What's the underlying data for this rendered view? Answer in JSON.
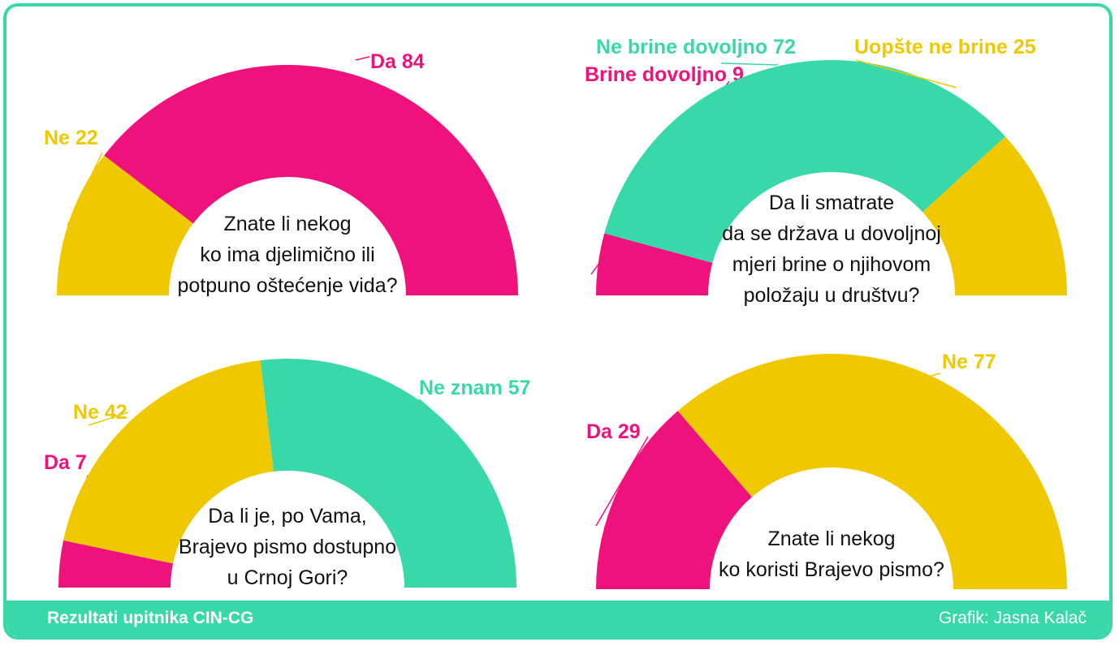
{
  "colors": {
    "pink": "#ef127c",
    "yellow": "#f0c800",
    "green": "#38d8a8",
    "frame": "#38d8a8"
  },
  "footer": {
    "left": "Rezultati upitnika CIN-CG",
    "right": "Grafik: Jasna Kalač"
  },
  "chart_data": [
    {
      "type": "pie",
      "question": [
        "Znate li nekog",
        "ko ima djelimično ili",
        "potpuno oštećenje vida?"
      ],
      "slices": [
        {
          "name": "Ne",
          "value": 22,
          "label": "Ne 22",
          "color": "yellow"
        },
        {
          "name": "Da",
          "value": 84,
          "label": "Da 84",
          "color": "pink"
        }
      ]
    },
    {
      "type": "pie",
      "question": [
        "Da li smatrate",
        "da se država u dovoljnoj",
        "mjeri brine o njihovom",
        "položaju u društvu?"
      ],
      "slices": [
        {
          "name": "Brine dovoljno",
          "value": 9,
          "label": "Brine dovoljno 9",
          "color": "pink"
        },
        {
          "name": "Ne brine dovoljno",
          "value": 72,
          "label": "Ne brine dovoljno 72",
          "color": "green"
        },
        {
          "name": "Uopšte ne brine",
          "value": 25,
          "label": "Uopšte ne brine 25",
          "color": "yellow"
        }
      ]
    },
    {
      "type": "pie",
      "question": [
        "Da li je, po Vama,",
        "Brajevo pismo dostupno",
        "u Crnoj Gori?"
      ],
      "slices": [
        {
          "name": "Da",
          "value": 7,
          "label": "Da 7",
          "color": "pink"
        },
        {
          "name": "Ne",
          "value": 42,
          "label": "Ne 42",
          "color": "yellow"
        },
        {
          "name": "Ne znam",
          "value": 57,
          "label": "Ne znam 57",
          "color": "green"
        }
      ]
    },
    {
      "type": "pie",
      "question": [
        "Znate li nekog",
        "ko koristi Brajevo pismo?"
      ],
      "slices": [
        {
          "name": "Da",
          "value": 29,
          "label": "Da 29",
          "color": "pink"
        },
        {
          "name": "Ne",
          "value": 77,
          "label": "Ne 77",
          "color": "yellow"
        }
      ]
    }
  ]
}
